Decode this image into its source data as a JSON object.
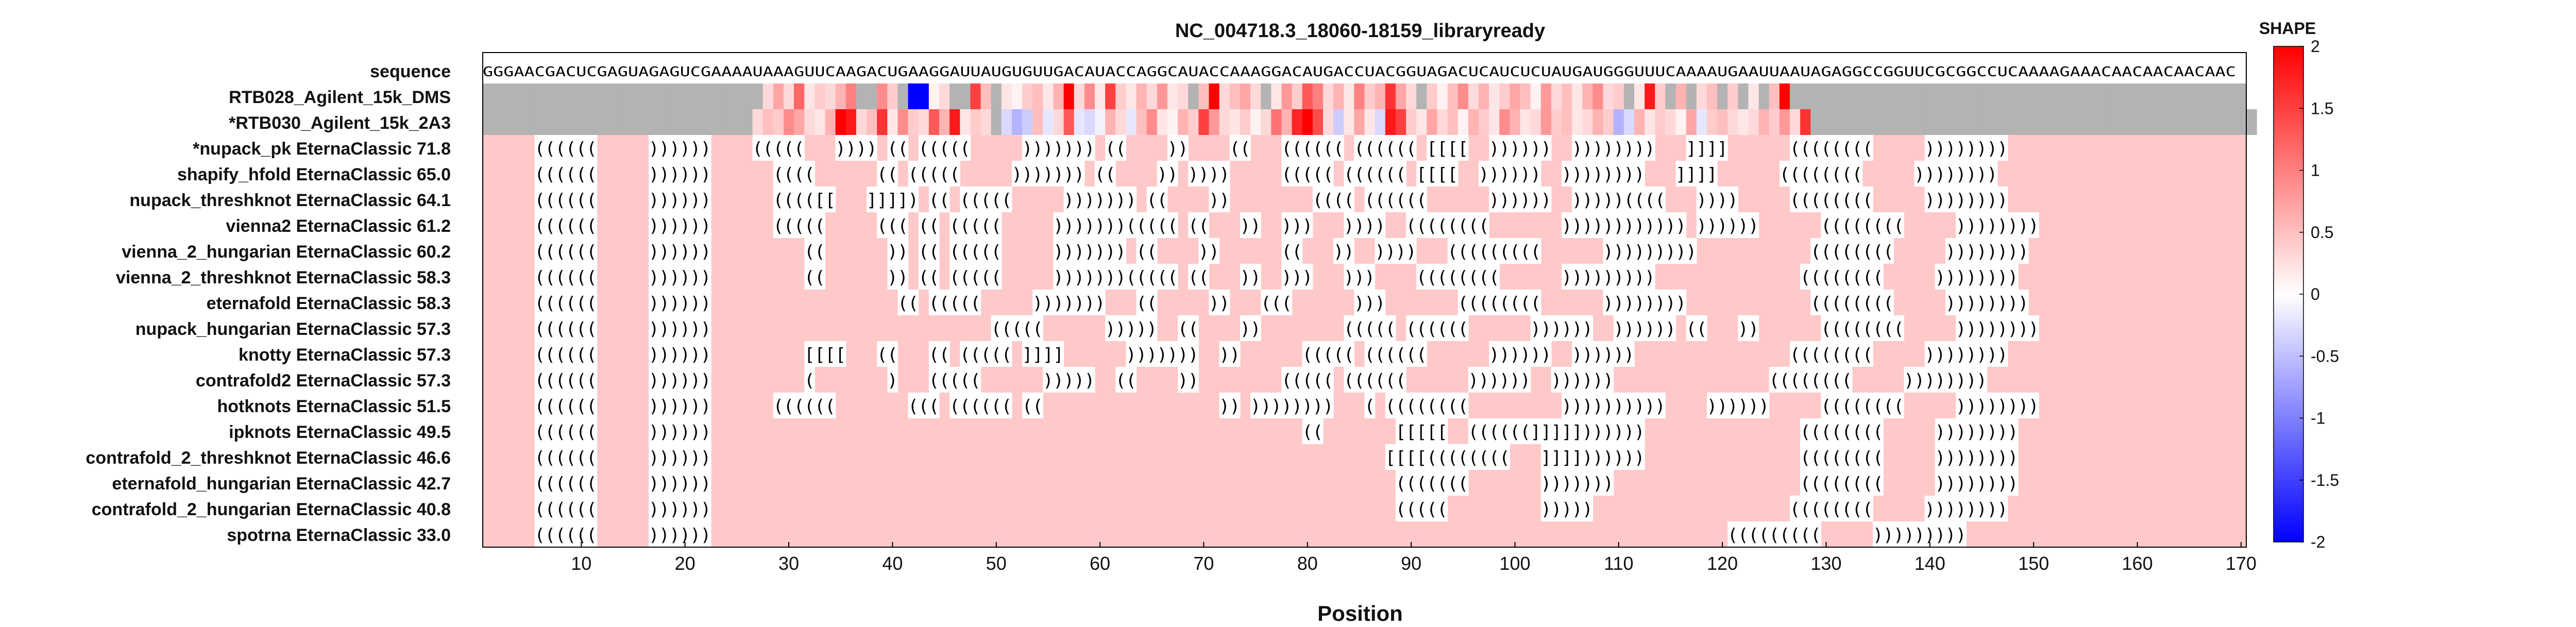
{
  "chart_data": {
    "type": "heatmap",
    "title": "NC_004718.3_18060-18159_libraryready",
    "xlabel": "Position",
    "xlim": [
      0.5,
      170.5
    ],
    "xticks": [
      10,
      20,
      30,
      40,
      50,
      60,
      70,
      80,
      90,
      100,
      110,
      120,
      130,
      140,
      150,
      160,
      170
    ],
    "sequence_label": "sequence",
    "sequence": "GGGAACGACUCGAGUAGAGUCGAAAAUAAAGUUCAAGACUGAAGGAUUAUGUGUUGACAUACCAGGCAUACCAAAGGACAUGACCUACGGUAGACUCAUCUCUAUGAUGGGUUUCAAAAUGAAUUAAUAGAGGCCGGUUCGCGGCCUCAAAAGAAACAACAACAACAAC",
    "shape_rows": [
      {
        "label": "RTB028_Agilent_15k_DMS",
        "values": [
          null,
          null,
          null,
          null,
          null,
          null,
          null,
          null,
          null,
          null,
          null,
          null,
          null,
          null,
          null,
          null,
          null,
          null,
          null,
          null,
          null,
          null,
          null,
          null,
          null,
          null,
          null,
          0.3,
          0.7,
          0.3,
          1.2,
          0.2,
          0.4,
          0.3,
          0.6,
          1.0,
          null,
          null,
          0.9,
          0.4,
          null,
          -2.0,
          -2.0,
          0.1,
          0.3,
          null,
          null,
          1.5,
          0.5,
          null,
          0.2,
          0.1,
          0.4,
          0.5,
          0.2,
          0.6,
          2.0,
          0.3,
          0.9,
          0.2,
          1.5,
          0.4,
          0.2,
          0.6,
          0.3,
          0.8,
          0.2,
          0.3,
          null,
          0.5,
          2.0,
          0.3,
          0.5,
          0.7,
          0.3,
          null,
          0.2,
          0.8,
          0.4,
          1.3,
          1.0,
          0.3,
          0.6,
          0.2,
          1.0,
          0.4,
          0.6,
          1.6,
          0.7,
          0.3,
          null,
          0.4,
          0.1,
          0.5,
          0.9,
          0.3,
          0.6,
          0.2,
          0.4,
          0.7,
          0.5,
          0.1,
          0.8,
          0.3,
          0.5,
          0.2,
          0.6,
          0.9,
          0.3,
          0.4,
          null,
          0.2,
          1.8,
          0.4,
          null,
          0.6,
          null,
          0.3,
          0.5,
          null,
          0.4,
          null,
          0.2,
          null,
          0.5,
          2.0,
          null,
          null,
          null,
          null,
          null,
          null,
          null,
          null,
          null,
          null,
          null,
          null,
          null,
          null,
          null,
          null,
          null,
          null,
          null,
          null,
          null,
          null,
          null,
          null,
          null,
          null,
          null,
          null,
          null,
          null,
          null,
          null,
          null,
          null,
          null,
          null,
          null,
          null,
          null,
          null,
          null,
          null,
          null,
          null
        ]
      },
      {
        "label": "*RTB030_Agilent_15k_2A3",
        "values": [
          null,
          null,
          null,
          null,
          null,
          null,
          null,
          null,
          null,
          null,
          null,
          null,
          null,
          null,
          null,
          null,
          null,
          null,
          null,
          null,
          null,
          null,
          null,
          null,
          null,
          null,
          0.3,
          0.5,
          0.4,
          0.9,
          0.7,
          0.3,
          0.2,
          0.6,
          2.0,
          1.8,
          0.3,
          0.5,
          1.6,
          0.2,
          0.9,
          0.4,
          0.3,
          1.3,
          0.6,
          1.8,
          0.2,
          0.4,
          0.3,
          null,
          -0.3,
          -0.6,
          -0.4,
          0.5,
          -0.2,
          0.3,
          1.3,
          -0.2,
          -0.3,
          -0.1,
          0.6,
          0.3,
          -0.2,
          0.5,
          0.9,
          0.2,
          0.1,
          0.6,
          0.4,
          1.5,
          0.8,
          0.3,
          0.2,
          0.4,
          0.1,
          0.3,
          1.1,
          0.6,
          1.7,
          2.0,
          1.4,
          0.3,
          -0.4,
          0.2,
          0.7,
          0.2,
          -0.3,
          1.8,
          1.5,
          0.4,
          0.2,
          0.7,
          0.3,
          0.5,
          0.1,
          0.6,
          0.4,
          0.2,
          0.9,
          0.6,
          0.2,
          0.3,
          0.8,
          0.4,
          0.5,
          0.2,
          0.3,
          0.6,
          0.4,
          -0.6,
          -0.3,
          0.6,
          0.2,
          0.4,
          0.3,
          0.1,
          0.7,
          -0.2,
          0.4,
          0.5,
          0.3,
          0.2,
          0.3,
          0.6,
          0.4,
          0.8,
          0.3,
          1.6,
          null,
          null,
          null,
          null,
          null,
          null,
          null,
          null,
          null,
          null,
          null,
          null,
          null,
          null,
          null,
          null,
          null,
          null,
          null,
          null,
          null,
          null,
          null,
          null,
          null,
          null,
          null,
          null,
          null,
          null,
          null,
          null,
          null,
          null,
          null,
          null,
          null,
          null,
          null,
          null,
          null,
          null,
          null
        ]
      }
    ],
    "structure_rows": [
      {
        "label": "*nupack_pk EternaClassic",
        "score": "71.8",
        "structure": ".....((((((.....))))))....(((((...)))).((.(((((.....))))))).((....))....((...((((((.((((((.[[[[..))))))..))))))))...]]]]......((((((((.....))))))))......................"
      },
      {
        "label": "shapify_hfold EternaClassic",
        "score": "65.0",
        "structure": ".....((((((.....))))))......((((......((.(((((.....))))))).((....)).)))).....(((((.((((((.[[[[..))))))..))))))))...]]]]......((((((((.....))))))))......................"
      },
      {
        "label": "nupack_threshknot EternaClassic",
        "score": "64.1",
        "structure": ".....((((((.....))))))......(((([[...]]]]).((.(((((.....))))))).((....))........((((.((((((......))))))..)))))((((...)))).....((((((((.....))))))))......................"
      },
      {
        "label": "vienna2 EternaClassic",
        "score": "61.2",
        "structure": ".....((((((.....))))))......(((((.....(((.((.(((((.....)))))))(((((.((...))..)))...))))..((((((((.......)))))))))))).))))))......((((((((.....))))))))......................"
      },
      {
        "label": "vienna_2_hungarian EternaClassic",
        "score": "60.2",
        "structure": ".....((((((.....)))))).........((......)).((.(((((.....))))))).((....))......((...))..))))...(((((((((......)))))))))...........((((((((.....))))))))......................"
      },
      {
        "label": "vienna_2_threshknot EternaClassic",
        "score": "58.3",
        "structure": ".....((((((.....)))))).........((......)).((.(((((.....)))))))(((((.((...))..)))...)))....((((((((......)))))))))..............((((((((.....))))))))......................"
      },
      {
        "label": "eternafold EternaClassic",
        "score": "58.3",
        "structure": ".....((((((.....))))))..................((.(((((.....)))))))...((.....))...(((......))).......((((((((......))))))))............((((((((.....))))))))......................"
      },
      {
        "label": "nupack_hungarian EternaClassic",
        "score": "57.3",
        "structure": ".....((((((.....))))))...........................(((((......)))))..((....))........(((((.((((((......))))))..)))))).((...))......((((((((.....))))))))......................"
      },
      {
        "label": "knotty EternaClassic",
        "score": "57.3",
        "structure": ".....((((((.....)))))).........[[[[...((...((.(((((.]]]]......)))))))..))......(((((.((((((......))))))..))))))...............((((((((.....))))))))......................"
      },
      {
        "label": "contrafold2 EternaClassic",
        "score": "57.3",
        "structure": ".....((((((.....)))))).........(.......)...(((((......)))))..((....))........(((((.((((((......))))))..))))))...............((((((((.....))))))))......................"
      },
      {
        "label": "hotknots EternaClassic",
        "score": "51.5",
        "structure": ".....((((((.....))))))......((((((.......(((.((((((.((.................)).))))))))...(.((((((((.........))))))))))....)))))).....((((((((.....))))))))......................"
      },
      {
        "label": "ipknots EternaClassic",
        "score": "49.5",
        "structure": ".....((((((.....)))))).........................................................((.......[[[[[..((((((]]]]]))))))...............((((((((.....))))))))......................"
      },
      {
        "label": "contrafold_2_threshknot EternaClassic",
        "score": "46.6",
        "structure": ".....((((((.....)))))).................................................................[[[[((((((((...]]]]))))))...............((((((((.....))))))))......................"
      },
      {
        "label": "eternafold_hungarian EternaClassic",
        "score": "42.7",
        "structure": ".....((((((.....))))))..................................................................(((((((.......)))))))..................((((((((.....))))))))......................"
      },
      {
        "label": "contrafold_2_hungarian EternaClassic",
        "score": "40.8",
        "structure": ".....((((((.....))))))..................................................................(((((.........)))))...................((((((((.....))))))))......................"
      },
      {
        "label": "spotrna EternaClassic",
        "score": "33.0",
        "structure": ".....((((((.....))))))..................................................................................................(((((((((.....)))))))))......................"
      }
    ],
    "colorbar": {
      "title": "SHAPE",
      "range": [
        -2,
        2
      ],
      "ticks": [
        "2",
        "1.5",
        "1",
        "0.5",
        "0",
        "-0.5",
        "-1",
        "-1.5",
        "-2"
      ],
      "colors": {
        "low": "#0000ff",
        "mid": "#ffffff",
        "high": "#ff0000"
      }
    },
    "colors": {
      "background": "#ffc9c9",
      "missing": "#b3b3b3",
      "paired_cell": "#ffffff"
    }
  }
}
